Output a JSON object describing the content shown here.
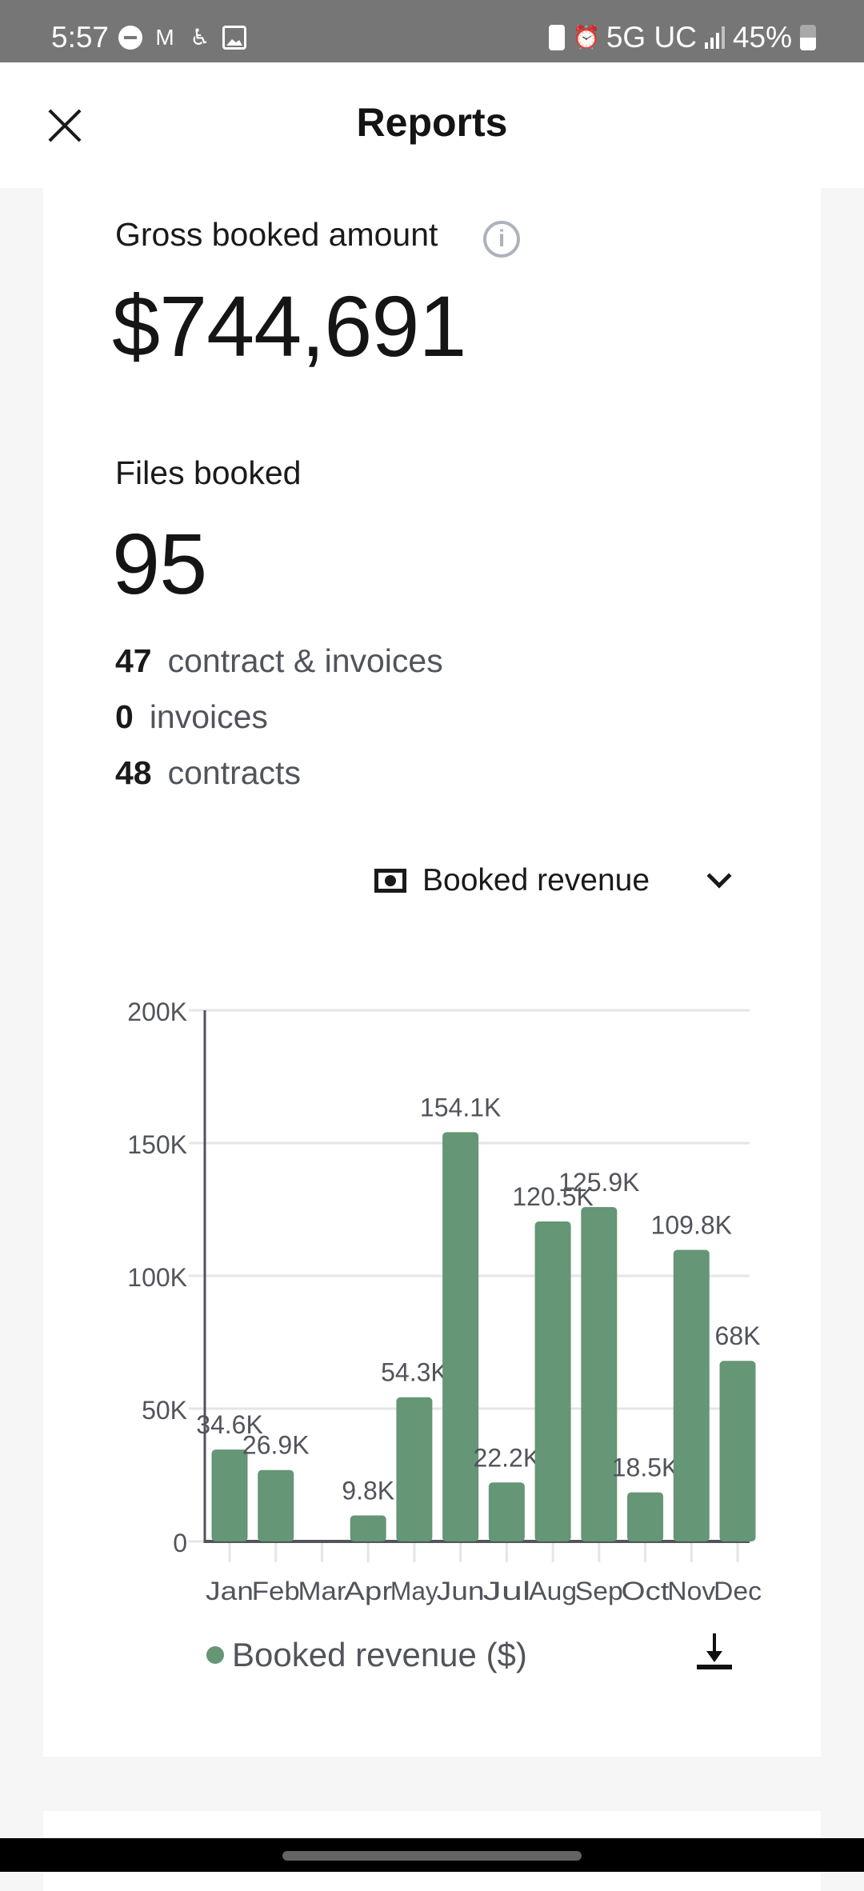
{
  "status_bar": {
    "time": "5:57",
    "network": "5G UC",
    "battery": "45%",
    "left_icons": [
      "do-not-disturb-icon",
      "gmail-icon",
      "accessibility-icon",
      "gallery-icon"
    ],
    "right_icons": [
      "battery-saver-icon",
      "alarm-icon",
      "signal-icon",
      "battery-icon"
    ]
  },
  "header": {
    "title": "Reports",
    "close_icon": "close-icon"
  },
  "summary": {
    "gross_label": "Gross booked amount",
    "gross_value": "$744,691",
    "files_label": "Files booked",
    "files_value": "95",
    "breakdown": [
      {
        "count": "47",
        "label": "contract & invoices"
      },
      {
        "count": "0",
        "label": "invoices"
      },
      {
        "count": "48",
        "label": "contracts"
      }
    ]
  },
  "metric_selector": {
    "icon": "money-icon",
    "selected": "Booked revenue"
  },
  "legend": {
    "label": "Booked revenue ($)",
    "download_icon": "download-icon"
  },
  "colors": {
    "bar": "#659675",
    "axis": "#52545c",
    "grid": "#e5e5e5"
  },
  "chart_data": {
    "type": "bar",
    "title": "",
    "xlabel": "",
    "ylabel": "",
    "categories": [
      "Jan",
      "Feb",
      "Mar",
      "Apr",
      "May",
      "Jun",
      "Jul",
      "Aug",
      "Sep",
      "Oct",
      "Nov",
      "Dec"
    ],
    "values": [
      34600,
      26900,
      0,
      9800,
      54300,
      154100,
      22200,
      120500,
      125900,
      18500,
      109800,
      68000
    ],
    "data_labels": [
      "34.6K",
      "26.9K",
      "",
      "9.8K",
      "54.3K",
      "154.1K",
      "22.2K",
      "120.5K",
      "125.9K",
      "18.5K",
      "109.8K",
      "68K"
    ],
    "ylim": [
      0,
      200000
    ],
    "yticks": [
      0,
      50000,
      100000,
      150000,
      200000
    ],
    "ytick_labels": [
      "0",
      "50K",
      "100K",
      "150K",
      "200K"
    ],
    "grid": true,
    "legend": "bottom",
    "series_name": "Booked revenue ($)"
  }
}
